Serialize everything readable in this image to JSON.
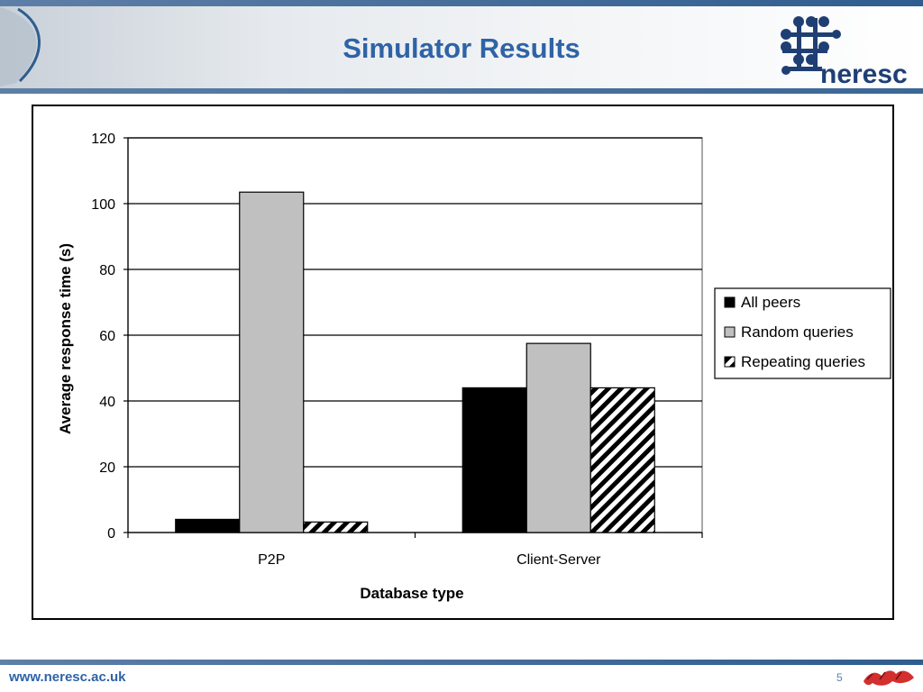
{
  "slide": {
    "title": "Simulator Results",
    "logo_text": "neresc",
    "footer_url": "www.neresc.ac.uk",
    "page_number": "5"
  },
  "colors": {
    "title": "#2f63a6",
    "bar_all_peers": "#000000",
    "bar_random": "#c0c0c0",
    "bar_repeating_pattern": "diagonal black/white stripes"
  },
  "chart_data": {
    "type": "bar",
    "title": "",
    "xlabel": "Database type",
    "ylabel": "Average response time (s)",
    "categories": [
      "P2P",
      "Client-Server"
    ],
    "series": [
      {
        "name": "All peers",
        "values": [
          4,
          44
        ]
      },
      {
        "name": "Random queries",
        "values": [
          103.5,
          57.5
        ]
      },
      {
        "name": "Repeating queries",
        "values": [
          3.2,
          44
        ]
      }
    ],
    "ylim": [
      0,
      120
    ],
    "yticks": [
      "0",
      "20",
      "40",
      "60",
      "80",
      "100",
      "120"
    ],
    "grid": true,
    "legend_position": "right"
  }
}
